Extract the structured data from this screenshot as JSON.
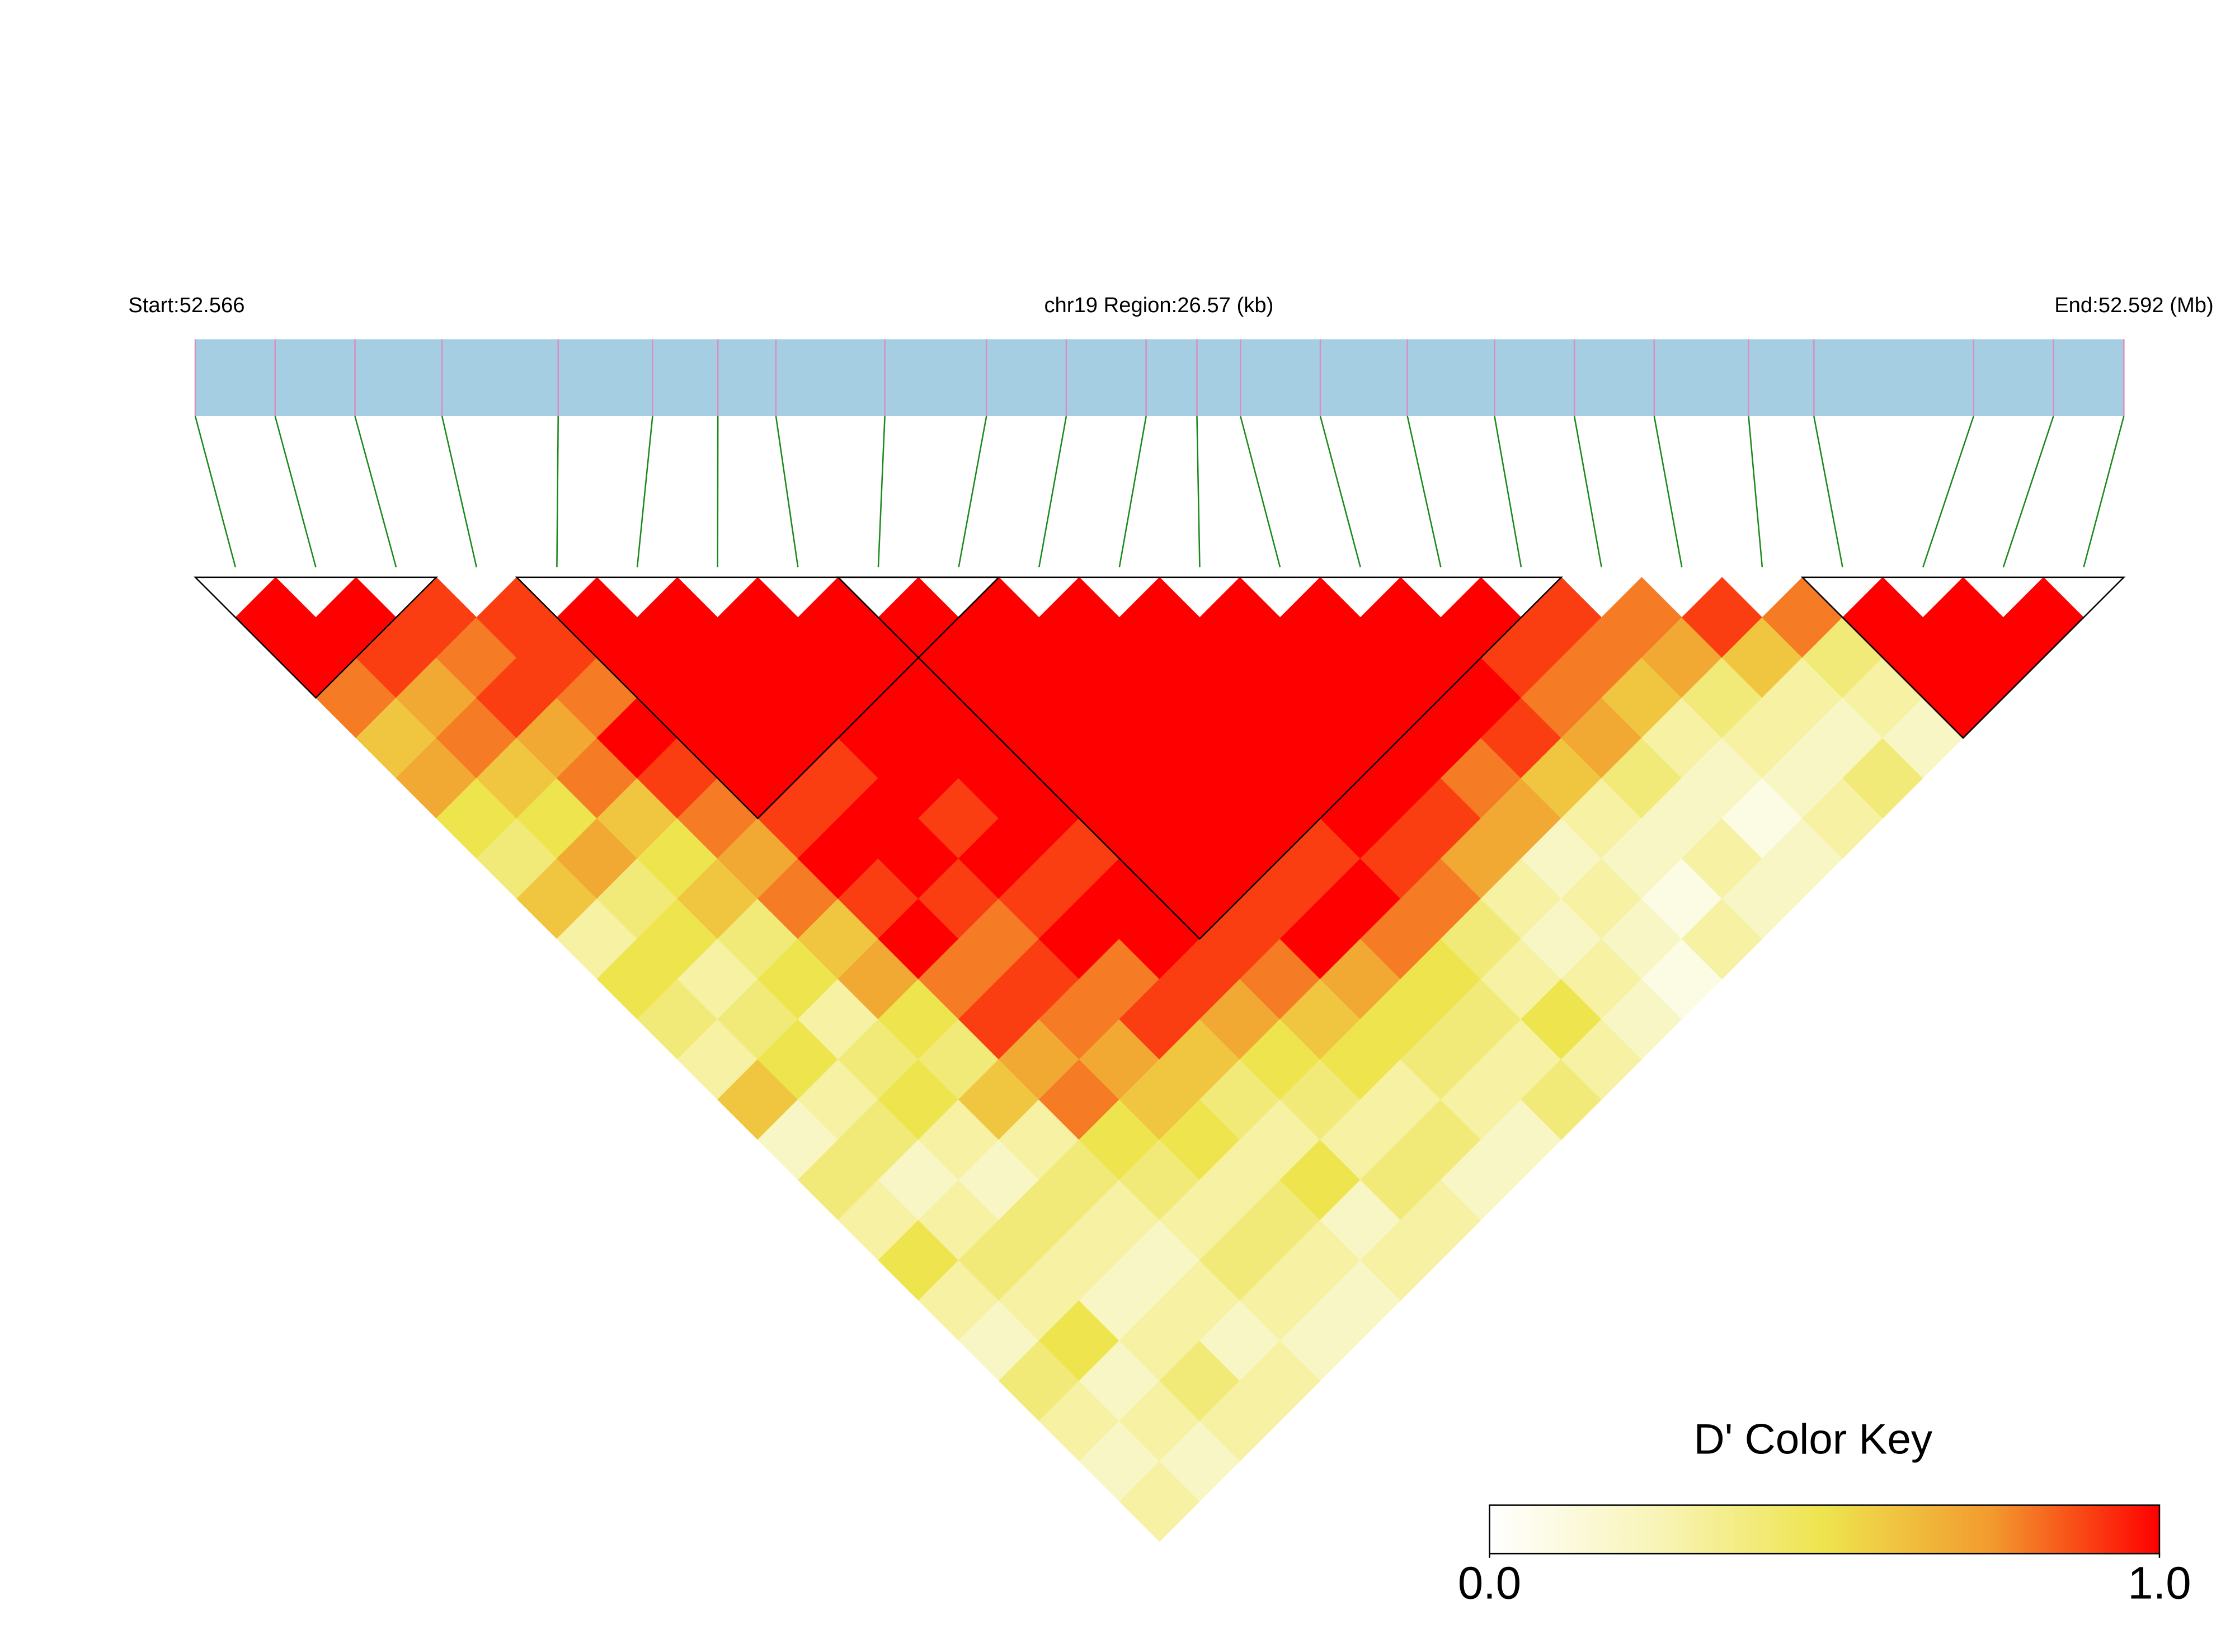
{
  "chart_data": {
    "type": "ld-heatmap",
    "start_label": "Start:52.566",
    "region_label": "chr19 Region:26.57 (kb)",
    "end_label": "End:52.592 (Mb)",
    "region_kb": 26.57,
    "snp_positions_kb": [
      0.0,
      1.1,
      2.2,
      3.4,
      5.0,
      6.3,
      7.2,
      8.0,
      9.5,
      10.9,
      12.0,
      13.1,
      13.8,
      14.4,
      15.5,
      16.7,
      17.9,
      19.0,
      20.1,
      21.4,
      22.3,
      24.5,
      25.6,
      26.57
    ],
    "dprime": [
      [
        1,
        1,
        0.8,
        0.6,
        0.7,
        0.5,
        0.4,
        0.6,
        0.3,
        0.5,
        0.4,
        0.3,
        0.6,
        0.2,
        0.4,
        0.3,
        0.5,
        0.3,
        0.2,
        0.4,
        0.3,
        0.2,
        0.3
      ],
      [
        1,
        0.9,
        0.7,
        0.8,
        0.6,
        0.5,
        0.7,
        0.4,
        0.5,
        0.3,
        0.4,
        0.5,
        0.3,
        0.4,
        0.2,
        0.3,
        0.4,
        0.3,
        0.5,
        0.2,
        0.3,
        0.2
      ],
      [
        0.9,
        0.8,
        0.9,
        0.7,
        0.8,
        0.6,
        0.5,
        0.6,
        0.4,
        0.5,
        0.3,
        0.4,
        0.5,
        0.3,
        0.2,
        0.4,
        0.3,
        0.2,
        0.3,
        0.4,
        0.3
      ],
      [
        0.9,
        0.9,
        0.8,
        1,
        0.9,
        0.8,
        0.7,
        0.8,
        0.6,
        0.7,
        0.5,
        0.4,
        0.6,
        0.3,
        0.4,
        0.3,
        0.2,
        0.3,
        0.2,
        0.3
      ],
      [
        1,
        1,
        1,
        1,
        1,
        0.9,
        1,
        0.9,
        1,
        0.8,
        0.9,
        0.7,
        0.8,
        0.5,
        0.4,
        0.3,
        0.4,
        0.3,
        0.2
      ],
      [
        1,
        1,
        1,
        1,
        0.9,
        1,
        1,
        0.9,
        0.8,
        0.9,
        0.8,
        0.7,
        0.6,
        0.5,
        0.3,
        0.4,
        0.3,
        0.2
      ],
      [
        1,
        1,
        1,
        1,
        1,
        0.9,
        1,
        0.9,
        1,
        0.8,
        0.9,
        0.6,
        0.4,
        0.3,
        0.5,
        0.2,
        0.3
      ],
      [
        1,
        1,
        1,
        1,
        1,
        1,
        0.9,
        1,
        1,
        0.9,
        0.7,
        0.5,
        0.4,
        0.3,
        0.4,
        0.3
      ],
      [
        1,
        1,
        1,
        1,
        1,
        1,
        1,
        1,
        0.9,
        0.8,
        0.6,
        0.5,
        0.3,
        0.4,
        0.2
      ],
      [
        1,
        1,
        1,
        1,
        1,
        1,
        1,
        0.9,
        1,
        0.7,
        0.5,
        0.4,
        0.3,
        0.2
      ],
      [
        1,
        1,
        1,
        1,
        1,
        1,
        0.9,
        1,
        0.8,
        0.5,
        0.4,
        0.3,
        0.4
      ],
      [
        1,
        1,
        1,
        1,
        1,
        1,
        0.9,
        0.8,
        0.4,
        0.3,
        0.5,
        0.3
      ],
      [
        1,
        1,
        1,
        1,
        1,
        0.9,
        0.7,
        0.3,
        0.2,
        0.3,
        0.2
      ],
      [
        1,
        1,
        1,
        1,
        0.8,
        0.7,
        0.2,
        0.3,
        0.2,
        0.1
      ],
      [
        1,
        1,
        1,
        0.9,
        0.6,
        0.3,
        0.2,
        0.1,
        0.3
      ],
      [
        1,
        0.9,
        0.8,
        0.7,
        0.4,
        0.2,
        0.3,
        0.2
      ],
      [
        0.9,
        0.8,
        0.6,
        0.3,
        0.2,
        0.1,
        0.2
      ],
      [
        0.8,
        0.7,
        0.4,
        0.3,
        0.2,
        0.3
      ],
      [
        0.9,
        0.6,
        0.3,
        0.2,
        0.4
      ],
      [
        0.8,
        0.4,
        0.3,
        0.2
      ],
      [
        1,
        1,
        1
      ],
      [
        1,
        1
      ],
      [
        1
      ]
    ],
    "blocks": [
      [
        0,
        2
      ],
      [
        4,
        9
      ],
      [
        8,
        16
      ],
      [
        20,
        23
      ]
    ],
    "colors": [
      "#ffffff",
      "#f8f4b8",
      "#eee44e",
      "#f29a2e",
      "#ff0000"
    ],
    "color_key": {
      "title": "D' Color Key",
      "ticks": [
        {
          "value": 0,
          "label": "0.0"
        },
        {
          "value": 1,
          "label": "1.0"
        }
      ]
    }
  }
}
